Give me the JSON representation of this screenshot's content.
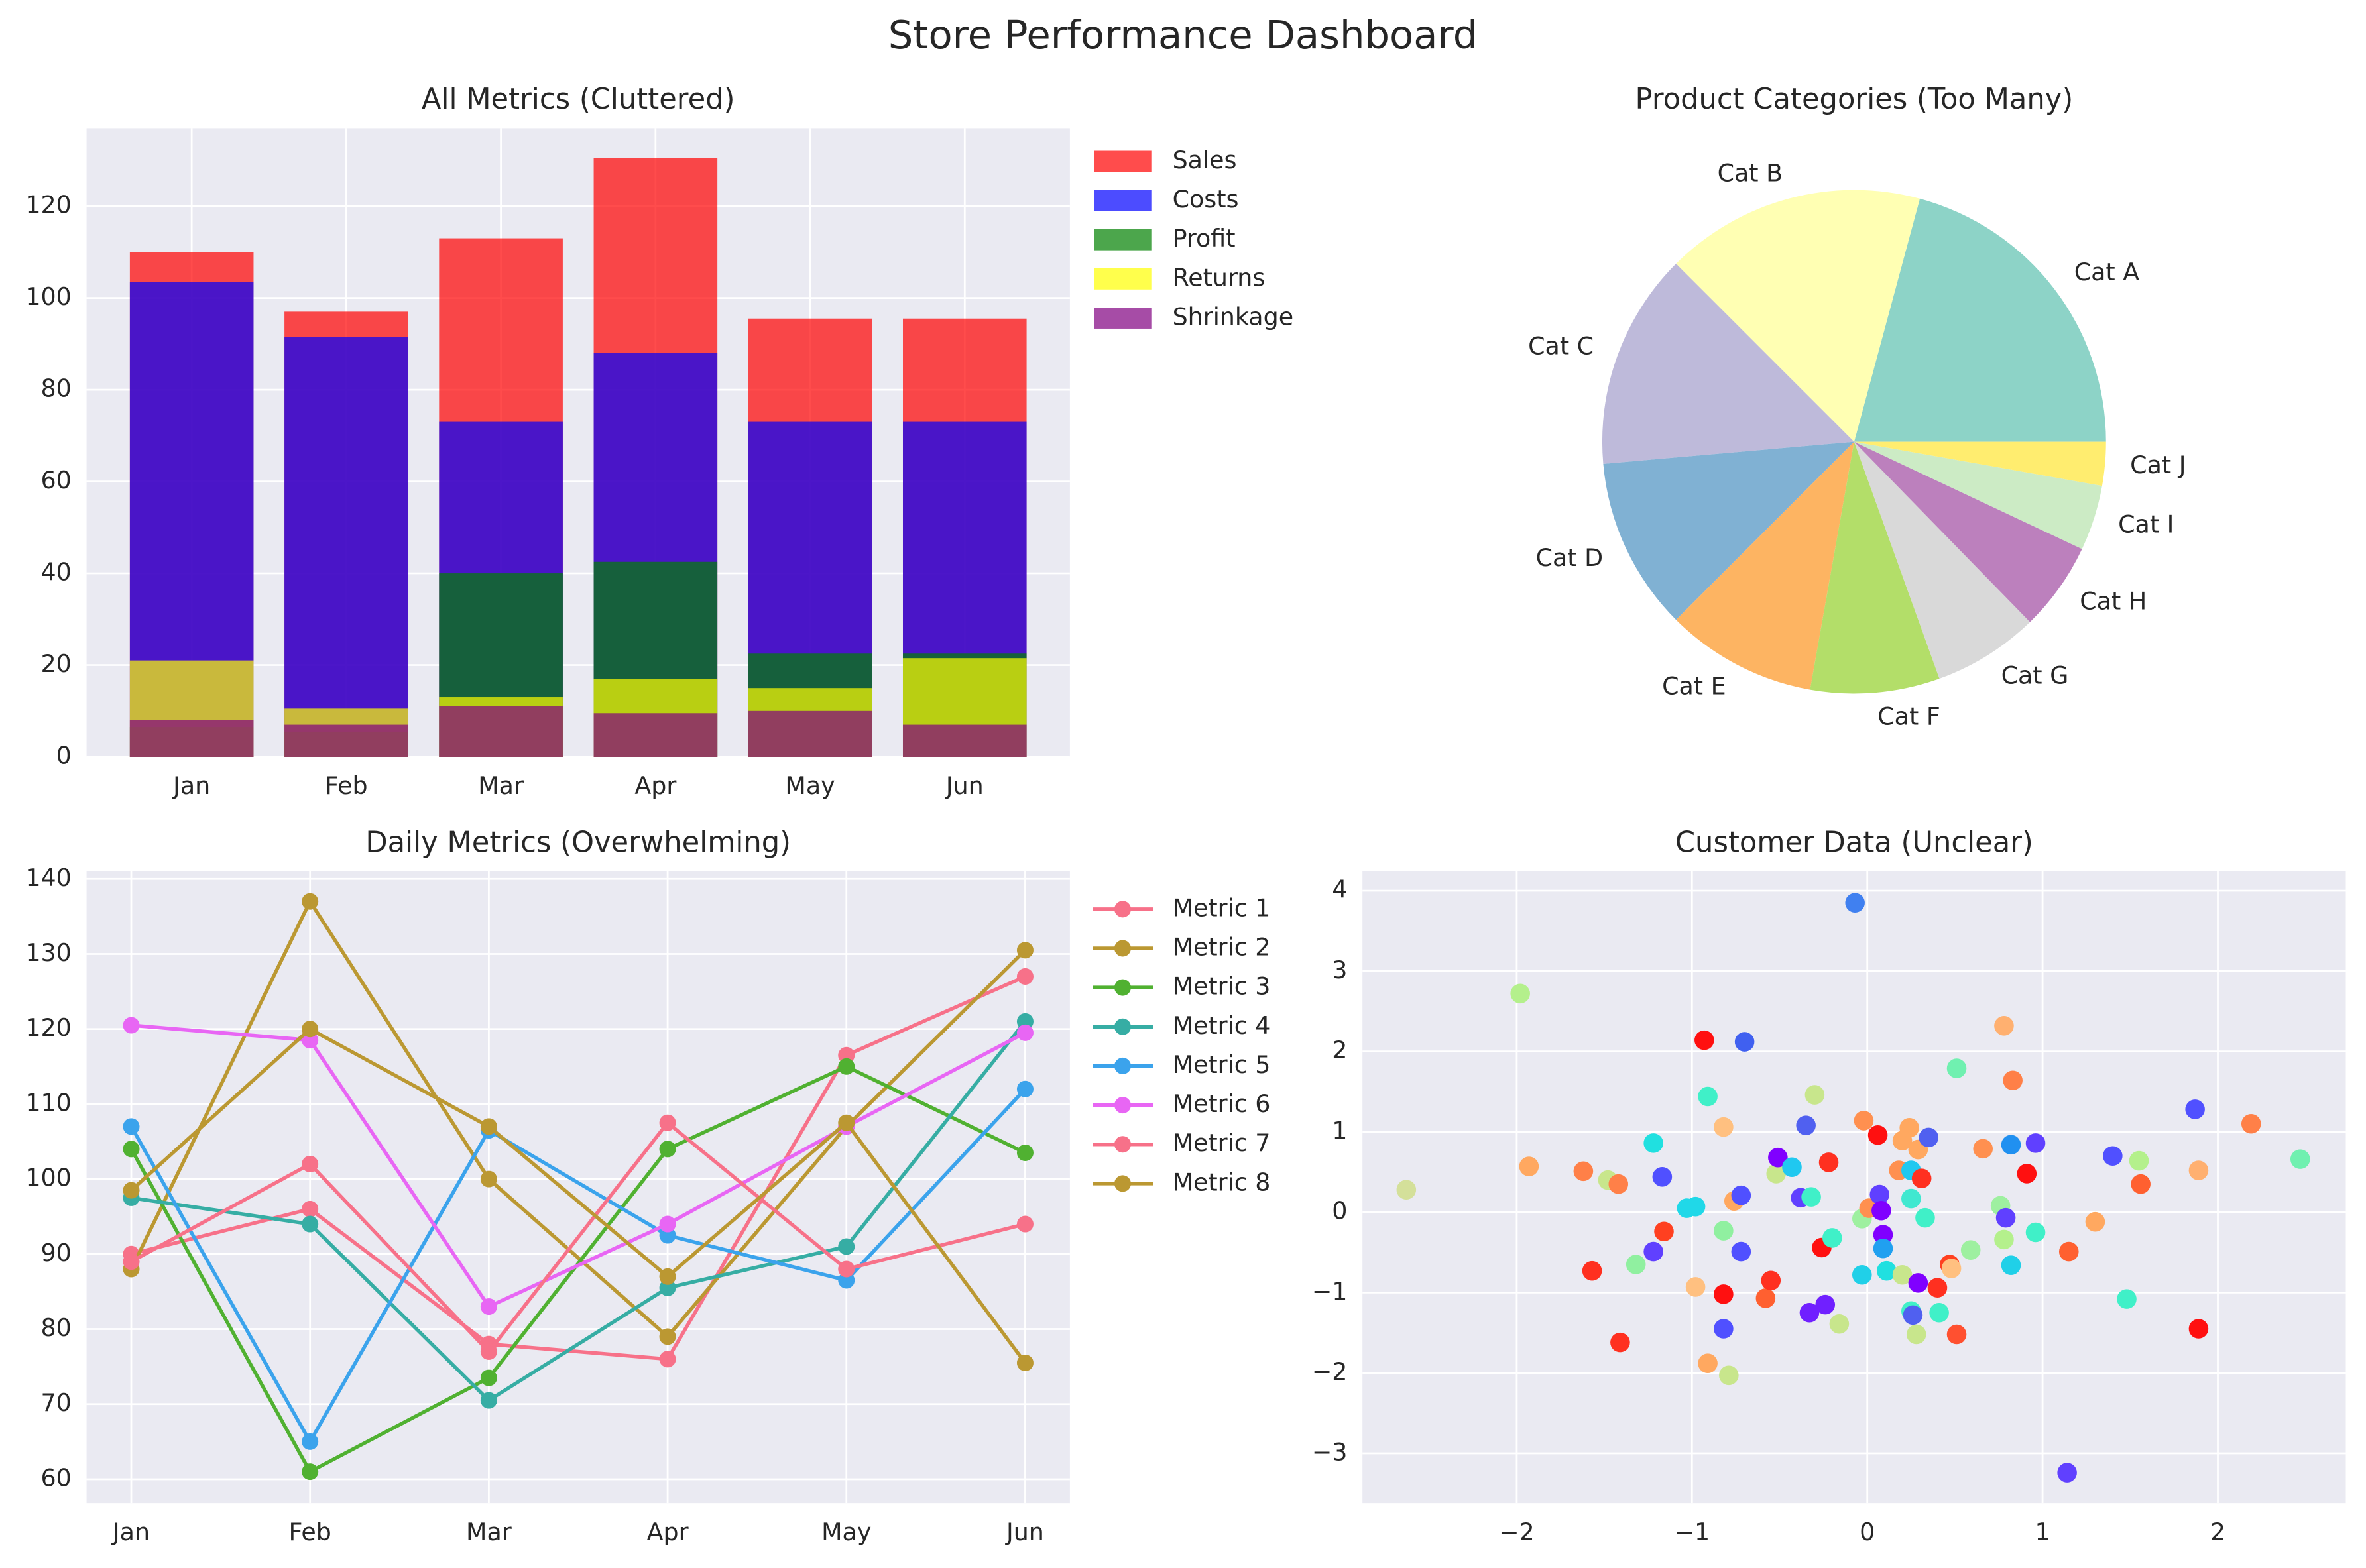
{
  "title": "Store Performance Dashboard",
  "chart_data": [
    {
      "type": "bar",
      "title": "All Metrics (Cluttered)",
      "alpha": 0.7,
      "grid": true,
      "categories": [
        "Jan",
        "Feb",
        "Mar",
        "Apr",
        "May",
        "Jun"
      ],
      "series": [
        {
          "name": "Sales",
          "color": "#ff0000",
          "values": [
            110,
            97,
            113,
            130.5,
            95.5,
            95.5
          ]
        },
        {
          "name": "Costs",
          "color": "#0000ff",
          "values": [
            103.5,
            91.5,
            73,
            88,
            73,
            73
          ]
        },
        {
          "name": "Profit",
          "color": "#008000",
          "values": [
            6.5,
            5.5,
            40,
            42.5,
            22.5,
            22.5
          ]
        },
        {
          "name": "Returns",
          "color": "#ffff00",
          "values": [
            21,
            10.5,
            13,
            17,
            15,
            21.5
          ]
        },
        {
          "name": "Shrinkage",
          "color": "#800080",
          "values": [
            8,
            7,
            11,
            9.5,
            10,
            7
          ]
        }
      ],
      "ylim": [
        0,
        137
      ],
      "yticks": [
        0,
        20,
        40,
        60,
        80,
        100,
        120
      ]
    },
    {
      "type": "pie",
      "title": "Product Categories (Too Many)",
      "labels": [
        "Cat A",
        "Cat B",
        "Cat C",
        "Cat D",
        "Cat E",
        "Cat F",
        "Cat G",
        "Cat H",
        "Cat I",
        "Cat J"
      ],
      "values": [
        20.8,
        16.7,
        13.9,
        11.1,
        9.7,
        8.3,
        6.8,
        5.7,
        4.2,
        2.8
      ],
      "colors": [
        "#8dd3c7",
        "#ffffb3",
        "#bebada",
        "#80b1d3",
        "#fdb462",
        "#b3de69",
        "#d9d9d9",
        "#bc80bd",
        "#ccebc5",
        "#ffed6f"
      ]
    },
    {
      "type": "line",
      "title": "Daily Metrics (Overwhelming)",
      "grid": true,
      "categories": [
        "Jan",
        "Feb",
        "Mar",
        "Apr",
        "May",
        "Jun"
      ],
      "series": [
        {
          "name": "Metric 1",
          "color": "#f77189",
          "values": [
            90,
            96,
            78,
            76,
            116.5,
            127
          ]
        },
        {
          "name": "Metric 2",
          "color": "#bb9832",
          "values": [
            88,
            137,
            100,
            79,
            107,
            130.5
          ]
        },
        {
          "name": "Metric 3",
          "color": "#50b131",
          "values": [
            104,
            61,
            73.5,
            104,
            115,
            103.5
          ]
        },
        {
          "name": "Metric 4",
          "color": "#36ada4",
          "values": [
            97.5,
            94,
            70.5,
            85.5,
            91,
            121
          ]
        },
        {
          "name": "Metric 5",
          "color": "#3ba3ec",
          "values": [
            107,
            65,
            106.5,
            92.5,
            86.5,
            112
          ]
        },
        {
          "name": "Metric 6",
          "color": "#e866f4",
          "values": [
            120.5,
            118.5,
            83,
            94,
            107,
            119.5
          ]
        },
        {
          "name": "Metric 7",
          "color": "#f77189",
          "values": [
            89,
            102,
            77,
            107.5,
            88,
            94
          ]
        },
        {
          "name": "Metric 8",
          "color": "#bb9832",
          "values": [
            98.5,
            120,
            107,
            87,
            107.5,
            75.5
          ]
        }
      ],
      "ylim": [
        56.8,
        141
      ],
      "yticks": [
        60,
        70,
        80,
        90,
        100,
        110,
        120,
        130,
        140
      ]
    },
    {
      "type": "scatter",
      "title": "Customer Data (Unclear)",
      "grid": true,
      "x": [
        -2.63,
        -1.98,
        -1.93,
        -1.62,
        -1.57,
        -1.48,
        -1.42,
        -1.41,
        -1.32,
        -1.22,
        -1.22,
        -1.17,
        -1.16,
        -1.03,
        -0.98,
        -0.98,
        -0.93,
        -0.91,
        -0.91,
        -0.82,
        -0.82,
        -0.82,
        -0.82,
        -0.79,
        -0.76,
        -0.72,
        -0.72,
        -0.7,
        -0.58,
        -0.55,
        -0.52,
        -0.51,
        -0.43,
        -0.38,
        -0.35,
        -0.33,
        -0.32,
        -0.3,
        -0.26,
        -0.24,
        -0.22,
        -0.2,
        -0.16,
        -0.07,
        -0.03,
        -0.03,
        -0.02,
        0.01,
        0.06,
        0.07,
        0.08,
        0.09,
        0.09,
        0.11,
        0.18,
        0.2,
        0.2,
        0.24,
        0.25,
        0.25,
        0.25,
        0.26,
        0.28,
        0.29,
        0.29,
        0.31,
        0.33,
        0.35,
        0.4,
        0.41,
        0.47,
        0.48,
        0.51,
        0.51,
        0.59,
        0.66,
        0.76,
        0.78,
        0.78,
        0.79,
        0.82,
        0.82,
        0.83,
        0.91,
        0.96,
        0.96,
        1.14,
        1.15,
        1.3,
        1.4,
        1.48,
        1.55,
        1.56,
        1.87,
        1.89,
        1.89,
        2.19,
        2.47
      ],
      "y": [
        0.28,
        2.72,
        0.57,
        0.51,
        -0.73,
        0.4,
        0.35,
        -1.62,
        -0.65,
        0.86,
        -0.49,
        0.44,
        -0.24,
        0.05,
        0.07,
        -0.93,
        2.14,
        1.44,
        -1.88,
        1.06,
        -0.23,
        -1.02,
        -1.45,
        -2.03,
        0.14,
        0.21,
        -0.49,
        2.12,
        -1.07,
        -0.85,
        0.48,
        0.68,
        0.56,
        0.18,
        1.08,
        -1.25,
        0.19,
        1.46,
        -0.44,
        -1.15,
        0.62,
        -0.32,
        -1.39,
        3.85,
        -0.08,
        -0.78,
        1.14,
        0.05,
        0.96,
        0.22,
        0.02,
        -0.28,
        -0.45,
        -0.73,
        0.52,
        0.89,
        -0.78,
        1.05,
        0.17,
        0.52,
        -1.23,
        -1.28,
        -1.52,
        -0.88,
        0.78,
        0.42,
        -0.07,
        0.93,
        -0.94,
        -1.25,
        -0.65,
        -0.7,
        1.79,
        -1.52,
        -0.47,
        0.79,
        0.08,
        -0.34,
        2.32,
        -0.07,
        0.84,
        -0.66,
        1.64,
        0.48,
        0.86,
        -0.25,
        -3.24,
        -0.49,
        -0.12,
        0.7,
        -1.08,
        0.64,
        0.35,
        1.28,
        0.52,
        -1.45,
        1.1,
        0.66
      ],
      "colors": [
        "#d4e09a",
        "#b4f08c",
        "#ffa860",
        "#ff8048",
        "#ff3020",
        "#c8e68c",
        "#ff8048",
        "#ff3020",
        "#90f0a0",
        "#20e0e0",
        "#6040ff",
        "#5050ff",
        "#ff4020",
        "#20d8e8",
        "#20d8e8",
        "#ffc080",
        "#ff1010",
        "#40f0c8",
        "#ffa860",
        "#ffc080",
        "#90f0a0",
        "#ff1010",
        "#5050ff",
        "#c8e68c",
        "#ffa860",
        "#5050ff",
        "#5050ff",
        "#4060f0",
        "#ff6030",
        "#ff3020",
        "#c8e68c",
        "#8000ff",
        "#20c8f0",
        "#6040ff",
        "#5060f0",
        "#7020ff",
        "#40f0c8",
        "#c8e68c",
        "#ff1010",
        "#7020ff",
        "#ff3020",
        "#40f0c8",
        "#c8e68c",
        "#4080f0",
        "#9ef0a0",
        "#20d0e8",
        "#ff9050",
        "#ff9050",
        "#ff1010",
        "#6040ff",
        "#8000ff",
        "#8000ff",
        "#20a0f0",
        "#20e0e0",
        "#ff9050",
        "#ffa860",
        "#c8e68c",
        "#ffa860",
        "#40e8d0",
        "#20c8f0",
        "#40f0c8",
        "#5060f0",
        "#c8e68c",
        "#8000ff",
        "#ffa860",
        "#ff3020",
        "#40f0c8",
        "#5060f0",
        "#ff3020",
        "#40f0c8",
        "#ff4020",
        "#ffc080",
        "#70f0b0",
        "#ff5030",
        "#9ef0a0",
        "#ff9050",
        "#9ef0a0",
        "#b4f08c",
        "#ffb070",
        "#6040ff",
        "#2090f0",
        "#20d0e8",
        "#ff8048",
        "#ff1010",
        "#6040ff",
        "#40f0c8",
        "#6040ff",
        "#ff6030",
        "#ffa860",
        "#5050ff",
        "#40f0c8",
        "#b4f08c",
        "#ff6030",
        "#5050ff",
        "#ffb070",
        "#ff1010",
        "#ff8048",
        "#70f0b0"
      ],
      "xlim": [
        -2.88,
        2.73
      ],
      "xticks": [
        {
          "value": -2,
          "label": "−2"
        },
        {
          "value": -1,
          "label": "−1"
        },
        0,
        1,
        2
      ],
      "ylim": [
        -3.62,
        4.24
      ],
      "yticks": [
        {
          "value": -3,
          "label": "−3"
        },
        {
          "value": -2,
          "label": "−2"
        },
        {
          "value": -1,
          "label": "−1"
        },
        0,
        1,
        2,
        3,
        4
      ]
    }
  ]
}
